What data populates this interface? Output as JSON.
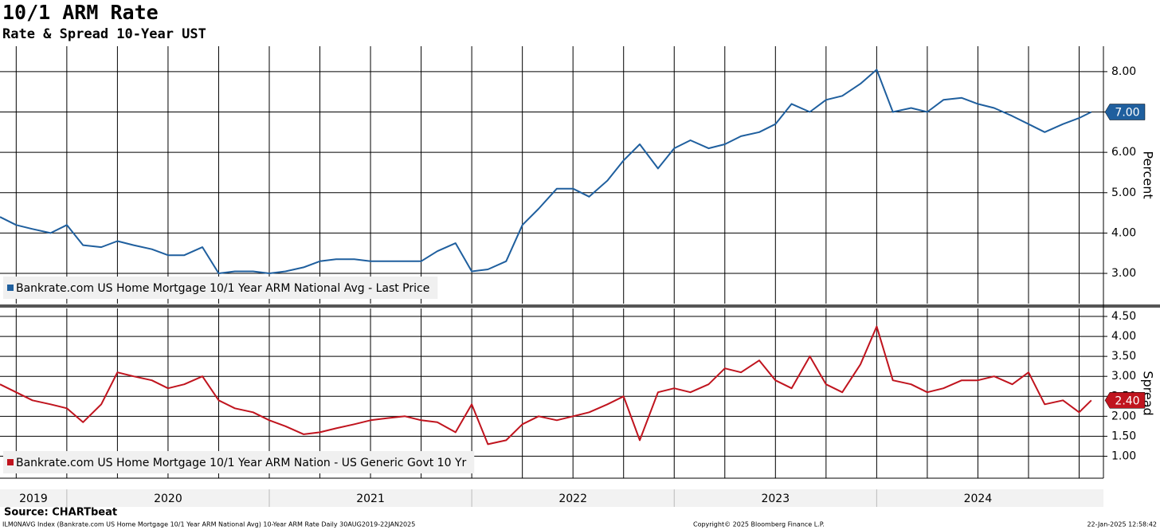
{
  "title": "10/1 ARM Rate",
  "subtitle": "Rate & Spread 10-Year UST",
  "source": "Source: CHARTbeat",
  "note": "ILM0NAVG Index (Bankrate.com US Home Mortgage 10/1 Year ARM National Avg) 10-Year ARM Rate  Daily 30AUG2019-22JAN2025",
  "copyright": "Copyright© 2025 Bloomberg Finance L.P.",
  "timestamp": "22-Jan-2025 12:58:42",
  "chart_data": [
    {
      "type": "line",
      "y_label": "Percent",
      "x": [
        2019.67,
        2019.75,
        2019.83,
        2019.92,
        2020,
        2020.08,
        2020.17,
        2020.25,
        2020.33,
        2020.42,
        2020.5,
        2020.58,
        2020.67,
        2020.75,
        2020.83,
        2020.92,
        2021,
        2021.08,
        2021.17,
        2021.25,
        2021.33,
        2021.42,
        2021.5,
        2021.58,
        2021.67,
        2021.75,
        2021.83,
        2021.92,
        2022,
        2022.08,
        2022.17,
        2022.25,
        2022.33,
        2022.42,
        2022.5,
        2022.58,
        2022.67,
        2022.75,
        2022.83,
        2022.92,
        2023,
        2023.08,
        2023.17,
        2023.25,
        2023.33,
        2023.42,
        2023.5,
        2023.58,
        2023.67,
        2023.75,
        2023.83,
        2023.92,
        2024,
        2024.08,
        2024.17,
        2024.25,
        2024.33,
        2024.42,
        2024.5,
        2024.58,
        2024.67,
        2024.75,
        2024.83,
        2024.92,
        2025,
        2025.06
      ],
      "series": [
        {
          "name": "Bankrate.com US Home Mortgage 10/1 Year ARM National Avg - Last Price",
          "color": "#1f5f9e",
          "values": [
            4.4,
            4.2,
            4.1,
            4.0,
            4.2,
            3.7,
            3.65,
            3.8,
            3.7,
            3.6,
            3.45,
            3.45,
            3.65,
            3.0,
            3.05,
            3.05,
            3.0,
            3.05,
            3.15,
            3.3,
            3.35,
            3.35,
            3.3,
            3.3,
            3.3,
            3.3,
            3.55,
            3.75,
            3.05,
            3.1,
            3.3,
            4.2,
            4.6,
            5.1,
            5.1,
            4.9,
            5.3,
            5.8,
            6.2,
            5.6,
            6.1,
            6.3,
            6.1,
            6.2,
            6.4,
            6.5,
            6.7,
            7.2,
            7.0,
            7.3,
            7.4,
            7.7,
            8.05,
            7.0,
            7.1,
            7.0,
            7.3,
            7.35,
            7.2,
            7.1,
            6.9,
            6.7,
            6.5,
            6.7,
            6.85,
            7.0
          ],
          "value_labels": [
            null,
            null,
            null,
            null,
            null,
            null,
            null,
            null,
            null,
            null,
            null,
            null,
            null,
            null,
            null,
            null,
            null,
            null,
            null,
            null,
            null,
            null,
            null,
            null,
            null,
            null,
            null,
            null,
            null,
            null,
            null,
            null,
            null,
            null,
            null,
            null,
            null,
            null,
            null,
            null,
            null,
            null,
            null,
            null,
            null,
            null,
            null,
            null,
            null,
            null,
            null,
            null,
            null,
            null,
            null,
            null,
            null,
            null,
            null,
            null,
            null,
            null,
            null,
            null,
            null,
            "7.00"
          ]
        }
      ],
      "xlim": [
        2019.67,
        2025.12
      ],
      "xgrid": [
        2019.75,
        2020,
        2020.25,
        2020.5,
        2020.75,
        2021,
        2021.25,
        2021.5,
        2021.75,
        2022,
        2022.25,
        2022.5,
        2022.75,
        2023,
        2023.25,
        2023.5,
        2023.75,
        2024,
        2024.25,
        2024.5,
        2024.75,
        2025
      ],
      "ylim": [
        2.25,
        8.63
      ],
      "yticks": [
        {
          "value": 3,
          "label": "3.00"
        },
        {
          "value": 4,
          "label": "4.00"
        },
        {
          "value": 5,
          "label": "5.00"
        },
        {
          "value": 6,
          "label": "6.00"
        },
        {
          "value": 7,
          "label": "7.00"
        },
        {
          "value": 8,
          "label": "8.00"
        }
      ],
      "grid": true
    },
    {
      "type": "line",
      "y_label": "Spread",
      "x": [
        2019.67,
        2019.75,
        2019.83,
        2019.92,
        2020,
        2020.08,
        2020.17,
        2020.25,
        2020.33,
        2020.42,
        2020.5,
        2020.58,
        2020.67,
        2020.75,
        2020.83,
        2020.92,
        2021,
        2021.08,
        2021.17,
        2021.25,
        2021.33,
        2021.42,
        2021.5,
        2021.58,
        2021.67,
        2021.75,
        2021.83,
        2021.92,
        2022,
        2022.08,
        2022.17,
        2022.25,
        2022.33,
        2022.42,
        2022.5,
        2022.58,
        2022.67,
        2022.75,
        2022.83,
        2022.92,
        2023,
        2023.08,
        2023.17,
        2023.25,
        2023.33,
        2023.42,
        2023.5,
        2023.58,
        2023.67,
        2023.75,
        2023.83,
        2023.92,
        2024,
        2024.08,
        2024.17,
        2024.25,
        2024.33,
        2024.42,
        2024.5,
        2024.58,
        2024.67,
        2024.75,
        2024.83,
        2024.92,
        2025,
        2025.06
      ],
      "series": [
        {
          "name": "Bankrate.com US Home Mortgage 10/1 Year ARM Nation - US Generic Govt 10 Yr",
          "color": "#c0141e",
          "values": [
            2.8,
            2.6,
            2.4,
            2.3,
            2.2,
            1.85,
            2.3,
            3.1,
            3.0,
            2.9,
            2.7,
            2.8,
            3.0,
            2.4,
            2.2,
            2.1,
            1.9,
            1.75,
            1.55,
            1.6,
            1.7,
            1.8,
            1.9,
            1.95,
            2.0,
            1.9,
            1.85,
            1.6,
            2.3,
            1.3,
            1.4,
            1.8,
            2.0,
            1.9,
            2.0,
            2.1,
            2.3,
            2.5,
            1.4,
            2.6,
            2.7,
            2.6,
            2.8,
            3.2,
            3.1,
            3.4,
            2.9,
            2.7,
            3.5,
            2.8,
            2.6,
            3.3,
            4.25,
            2.9,
            2.8,
            2.6,
            2.7,
            2.9,
            2.9,
            3.0,
            2.8,
            3.1,
            2.3,
            2.4,
            2.1,
            2.4
          ],
          "value_labels": [
            null,
            null,
            null,
            null,
            null,
            null,
            null,
            null,
            null,
            null,
            null,
            null,
            null,
            null,
            null,
            null,
            null,
            null,
            null,
            null,
            null,
            null,
            null,
            null,
            null,
            null,
            null,
            null,
            null,
            null,
            null,
            null,
            null,
            null,
            null,
            null,
            null,
            null,
            null,
            null,
            null,
            null,
            null,
            null,
            null,
            null,
            null,
            null,
            null,
            null,
            null,
            null,
            null,
            null,
            null,
            null,
            null,
            null,
            null,
            null,
            null,
            null,
            null,
            null,
            null,
            "2.40"
          ]
        }
      ],
      "xlim": [
        2019.67,
        2025.12
      ],
      "xgrid": [
        2019.75,
        2020,
        2020.25,
        2020.5,
        2020.75,
        2021,
        2021.25,
        2021.5,
        2021.75,
        2022,
        2022.25,
        2022.5,
        2022.75,
        2023,
        2023.25,
        2023.5,
        2023.75,
        2024,
        2024.25,
        2024.5,
        2024.75,
        2025
      ],
      "xticks": [
        2019,
        2020,
        2021,
        2022,
        2023,
        2024
      ],
      "ylim": [
        0.45,
        4.7
      ],
      "yticks": [
        {
          "value": 1,
          "label": "1.00"
        },
        {
          "value": 1.5,
          "label": "1.50"
        },
        {
          "value": 2,
          "label": "2.00"
        },
        {
          "value": 2.5,
          "label": "2.50"
        },
        {
          "value": 3,
          "label": "3.00"
        },
        {
          "value": 3.5,
          "label": "3.50"
        },
        {
          "value": 4,
          "label": "4.00"
        },
        {
          "value": 4.5,
          "label": "4.50"
        }
      ],
      "grid": true
    }
  ]
}
